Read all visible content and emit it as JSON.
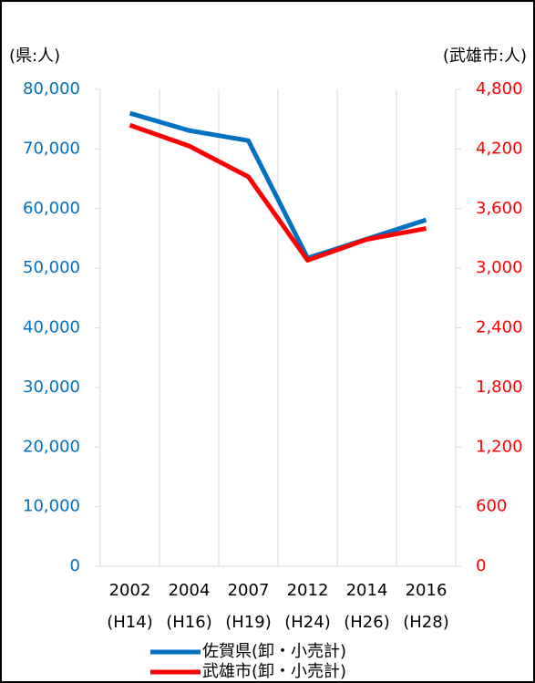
{
  "chart_data": {
    "type": "line",
    "y_label": "(県:人)",
    "y2_label": "(武雄市:人)",
    "categories": [
      [
        "2002",
        "(H14)"
      ],
      [
        "2004",
        "(H16)"
      ],
      [
        "2007",
        "(H19)"
      ],
      [
        "2012",
        "(H24)"
      ],
      [
        "2014",
        "(H26)"
      ],
      [
        "2016",
        "(H28)"
      ]
    ],
    "series": [
      {
        "name": "佐賀県(卸・小売計)",
        "color": "#0070c0",
        "values": [
          76000,
          73100,
          71400,
          51700,
          54900,
          58100
        ]
      },
      {
        "name": "武雄市(卸・小売計)",
        "color": "#ff0000",
        "axis": "y2",
        "values": [
          4440,
          4230,
          3920,
          3080,
          3290,
          3400
        ]
      }
    ],
    "ylim": [
      0,
      80000
    ],
    "yticks": [
      0,
      {
        "value": 10000,
        "label": "10,000"
      },
      {
        "value": 20000,
        "label": "20,000"
      },
      {
        "value": 30000,
        "label": "30,000"
      },
      {
        "value": 40000,
        "label": "40,000"
      },
      {
        "value": 50000,
        "label": "50,000"
      },
      {
        "value": 60000,
        "label": "60,000"
      },
      {
        "value": 70000,
        "label": "70,000"
      },
      {
        "value": 80000,
        "label": "80,000"
      }
    ],
    "y2lim": [
      0,
      4800
    ],
    "y2ticks": [
      0,
      600,
      {
        "value": 1200,
        "label": "1,200"
      },
      {
        "value": 1800,
        "label": "1,800"
      },
      {
        "value": 2400,
        "label": "2,400"
      },
      {
        "value": 3000,
        "label": "3,000"
      },
      {
        "value": 3600,
        "label": "3,600"
      },
      {
        "value": 4200,
        "label": "4,200"
      },
      {
        "value": 4800,
        "label": "4,800"
      }
    ],
    "grid": true
  }
}
